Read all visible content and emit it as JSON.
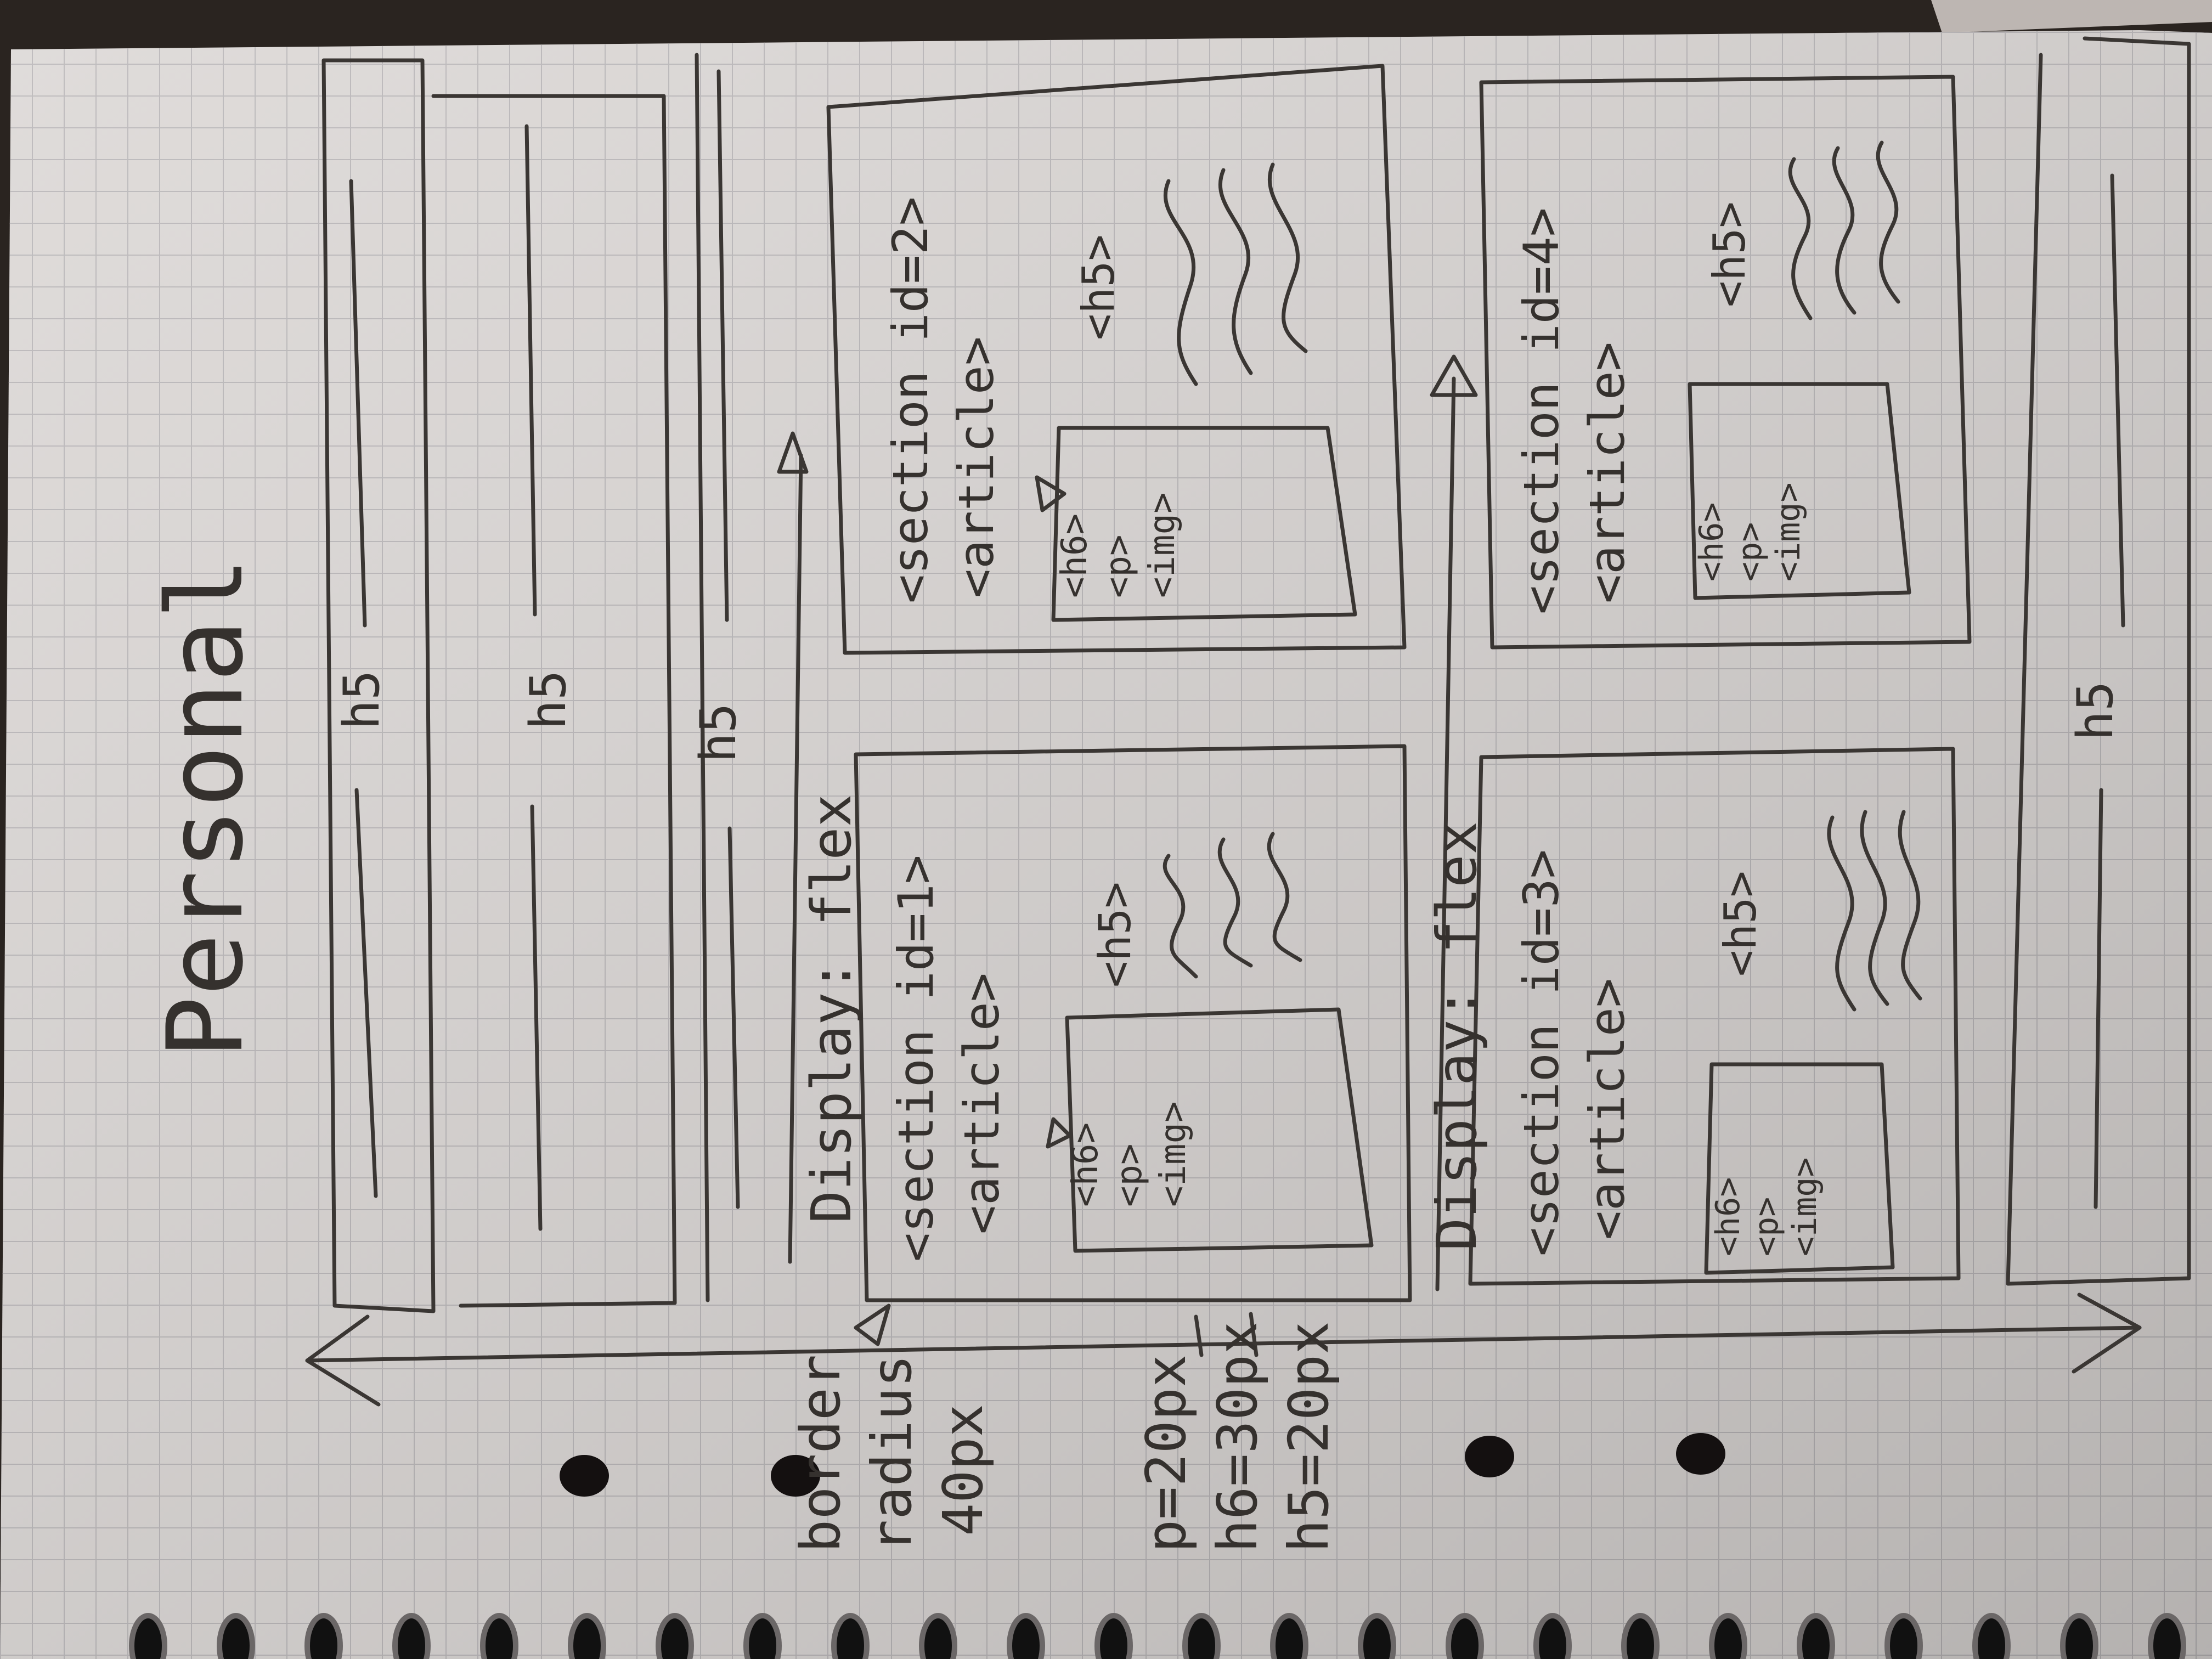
{
  "photo": {
    "subject": "graph-paper notebook page, rotated 90 degrees",
    "colors": {
      "paper": "#dcd8d6",
      "grid": "#b9b6b8",
      "ink": "#3a3633",
      "table": "#2a2420",
      "hole": "#141010"
    }
  },
  "page": {
    "title": "Personal",
    "border_note": [
      "border",
      "radius",
      "40px"
    ],
    "size_notes": [
      "p=20px",
      "h6=30px",
      "h5=20px"
    ],
    "display_flex_1": "Display: flex",
    "display_flex_2": "Display: flex",
    "section_1": {
      "section_tag": "<section id=1>",
      "article_tag": "<article>",
      "heading_tag": "<h5>",
      "card_lines": [
        "<h6>",
        "<p>",
        "<img>"
      ]
    },
    "section_2": {
      "section_tag": "<section id=2>",
      "article_tag": "<article>",
      "heading_tag": "<h5>",
      "card_lines": [
        "<h6>",
        "<p>",
        "<img>"
      ]
    },
    "section_3": {
      "section_tag": "<section id=3>",
      "article_tag": "<article>",
      "heading_tag": "<h5>",
      "card_lines": [
        "<h6>",
        "<p>",
        "<img>"
      ]
    },
    "section_4": {
      "section_tag": "<section id=4>",
      "article_tag": "<article>",
      "heading_tag": "<h5>",
      "card_lines": [
        "<h6>",
        "<p>",
        "<img>"
      ]
    },
    "h5_marks": [
      "h5",
      "h5",
      "h5",
      "h5"
    ]
  }
}
